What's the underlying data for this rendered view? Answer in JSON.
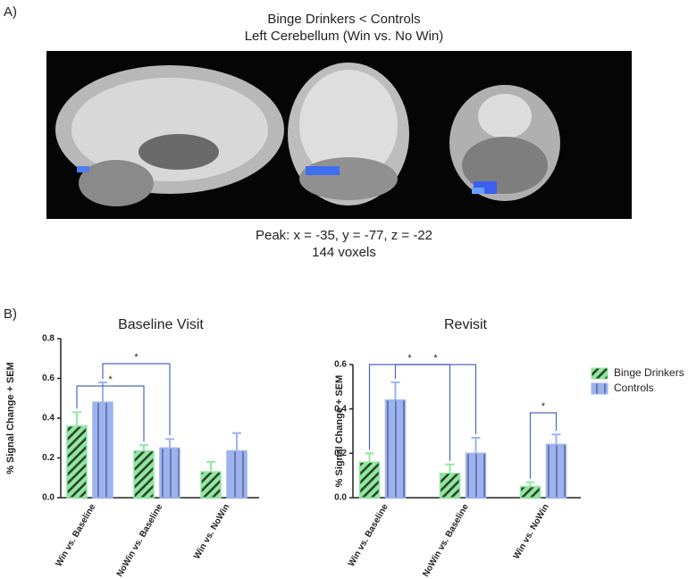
{
  "panel_a": {
    "label": "A)",
    "title": "Binge Drinkers < Controls",
    "subtitle": "Left Cerebellum (Win vs. No Win)",
    "peak": "Peak: x = -35, y = -77, z = -22",
    "voxels": "144 voxels"
  },
  "panel_b": {
    "label": "B)"
  },
  "chart_data": [
    {
      "type": "bar",
      "title": "Baseline Visit",
      "y_label": "% Signal Change +  SEM",
      "categories": [
        "Win vs. Baseline",
        "NoWin vs. Baseline",
        "Win vs. NoWin"
      ],
      "series": [
        {
          "name": "Binge Drinkers",
          "color": "#90e8a0",
          "pattern": "diagonal",
          "values": [
            0.36,
            0.235,
            0.13
          ],
          "errors": [
            0.07,
            0.03,
            0.05
          ]
        },
        {
          "name": "Controls",
          "color": "#9db3f0",
          "pattern": "vertical",
          "values": [
            0.48,
            0.25,
            0.235
          ],
          "errors": [
            0.1,
            0.045,
            0.09
          ]
        }
      ],
      "ylim": [
        0,
        0.8
      ],
      "yticks": [
        {
          "value": 0,
          "label": "0.0"
        },
        0.2,
        0.4,
        0.6,
        0.8
      ],
      "annotations": [
        "*",
        "*"
      ],
      "legend": false
    },
    {
      "type": "bar",
      "title": "Revisit",
      "y_label": "% Signal Change +  SEM",
      "categories": [
        "Win vs. Baseline",
        "NoWin vs. Baseline",
        "Win vs. NoWin"
      ],
      "series": [
        {
          "name": "Binge Drinkers",
          "color": "#90e8a0",
          "pattern": "diagonal",
          "values": [
            0.16,
            0.11,
            0.05
          ],
          "errors": [
            0.04,
            0.04,
            0.02
          ]
        },
        {
          "name": "Controls",
          "color": "#9db3f0",
          "pattern": "vertical",
          "values": [
            0.44,
            0.2,
            0.24
          ],
          "errors": [
            0.08,
            0.07,
            0.045
          ]
        }
      ],
      "ylim": [
        0,
        0.6
      ],
      "yticks": [
        {
          "value": 0,
          "label": "0.0"
        },
        0.2,
        0.4,
        0.6
      ],
      "annotations": [
        "*",
        "*",
        "*"
      ],
      "legend": "right"
    }
  ]
}
